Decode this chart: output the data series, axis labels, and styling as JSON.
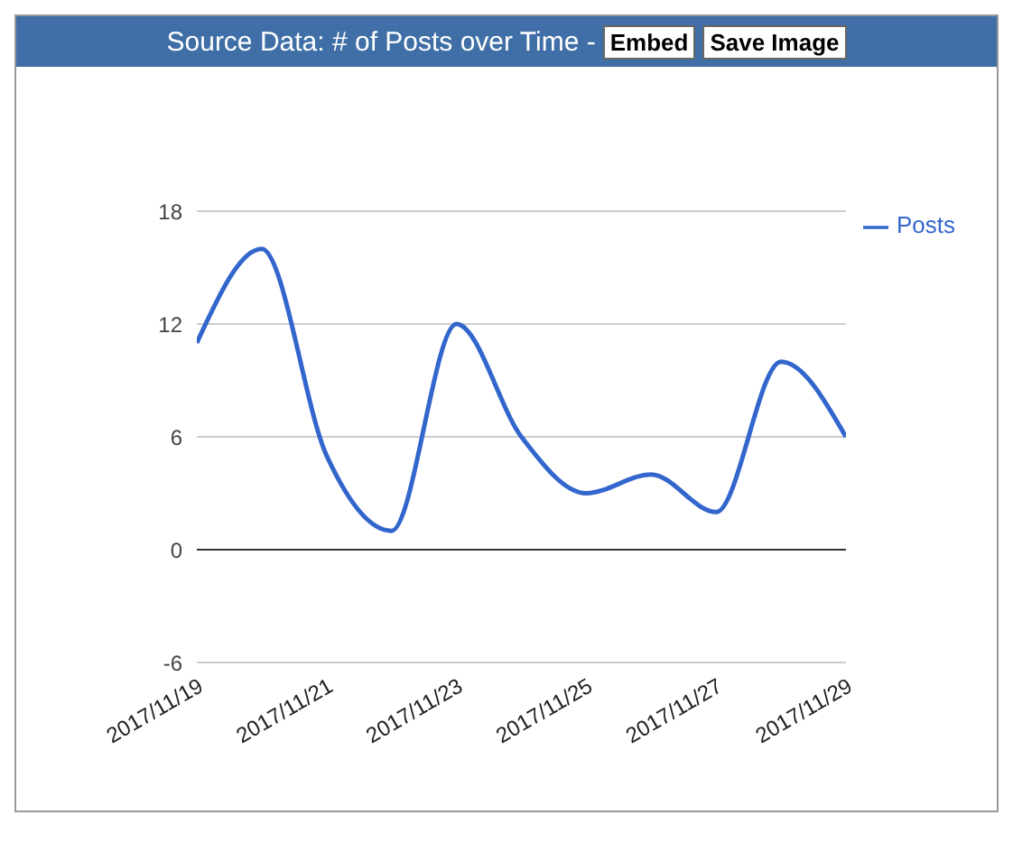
{
  "chart_data": {
    "type": "line",
    "title": "Source Data: # of Posts over Time -",
    "annotations": [
      "Embed",
      "Save Image"
    ],
    "x": [
      "2017-11-19",
      "2017-11-20",
      "2017-11-21",
      "2017-11-22",
      "2017-11-23",
      "2017-11-24",
      "2017-11-25",
      "2017-11-26",
      "2017-11-27",
      "2017-11-28",
      "2017-11-29"
    ],
    "series": [
      {
        "name": "Posts",
        "color": "#3366cc",
        "values": [
          11,
          16,
          5,
          1,
          12,
          6,
          3,
          4,
          2,
          10,
          6
        ]
      }
    ],
    "xlim": [
      "2017-11-19",
      "2017-11-29"
    ],
    "xticks": [
      {
        "value": "2017-11-19",
        "label": "2017/11/19"
      },
      {
        "value": "2017-11-21",
        "label": "2017/11/21"
      },
      {
        "value": "2017-11-23",
        "label": "2017/11/23"
      },
      {
        "value": "2017-11-25",
        "label": "2017/11/25"
      },
      {
        "value": "2017-11-27",
        "label": "2017/11/27"
      },
      {
        "value": "2017-11-29",
        "label": "2017/11/29"
      }
    ],
    "ylim": [
      -6,
      18
    ],
    "yticks": [
      -6,
      0,
      6,
      12,
      18
    ],
    "ref_lines": [
      {
        "axis": "y",
        "value": 0,
        "color": "#333333"
      }
    ],
    "grid": "y",
    "legend": "right",
    "marker": "none",
    "line_style": "solid"
  }
}
